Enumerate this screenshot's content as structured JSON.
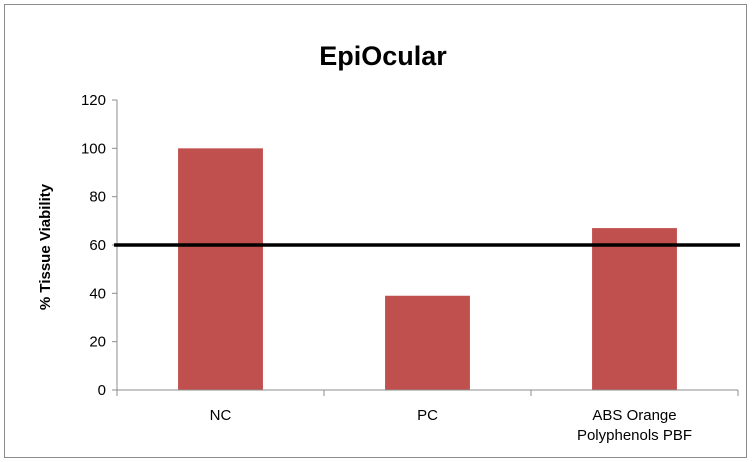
{
  "chart_data": {
    "type": "bar",
    "title": "EpiOcular",
    "xlabel": "",
    "ylabel": "% Tissue Viability",
    "categories": [
      [
        "NC"
      ],
      [
        "PC"
      ],
      [
        "ABS Orange",
        "Polyphenols PBF"
      ]
    ],
    "values": [
      100,
      39,
      67
    ],
    "ylim": [
      0,
      120
    ],
    "yticks": [
      0,
      20,
      40,
      60,
      80,
      100,
      120
    ],
    "threshold": 60,
    "grid": false,
    "legend": "none",
    "colors": {
      "bar": "#c0504d",
      "threshold_line": "#000000",
      "axis": "#8c8c8c"
    }
  }
}
